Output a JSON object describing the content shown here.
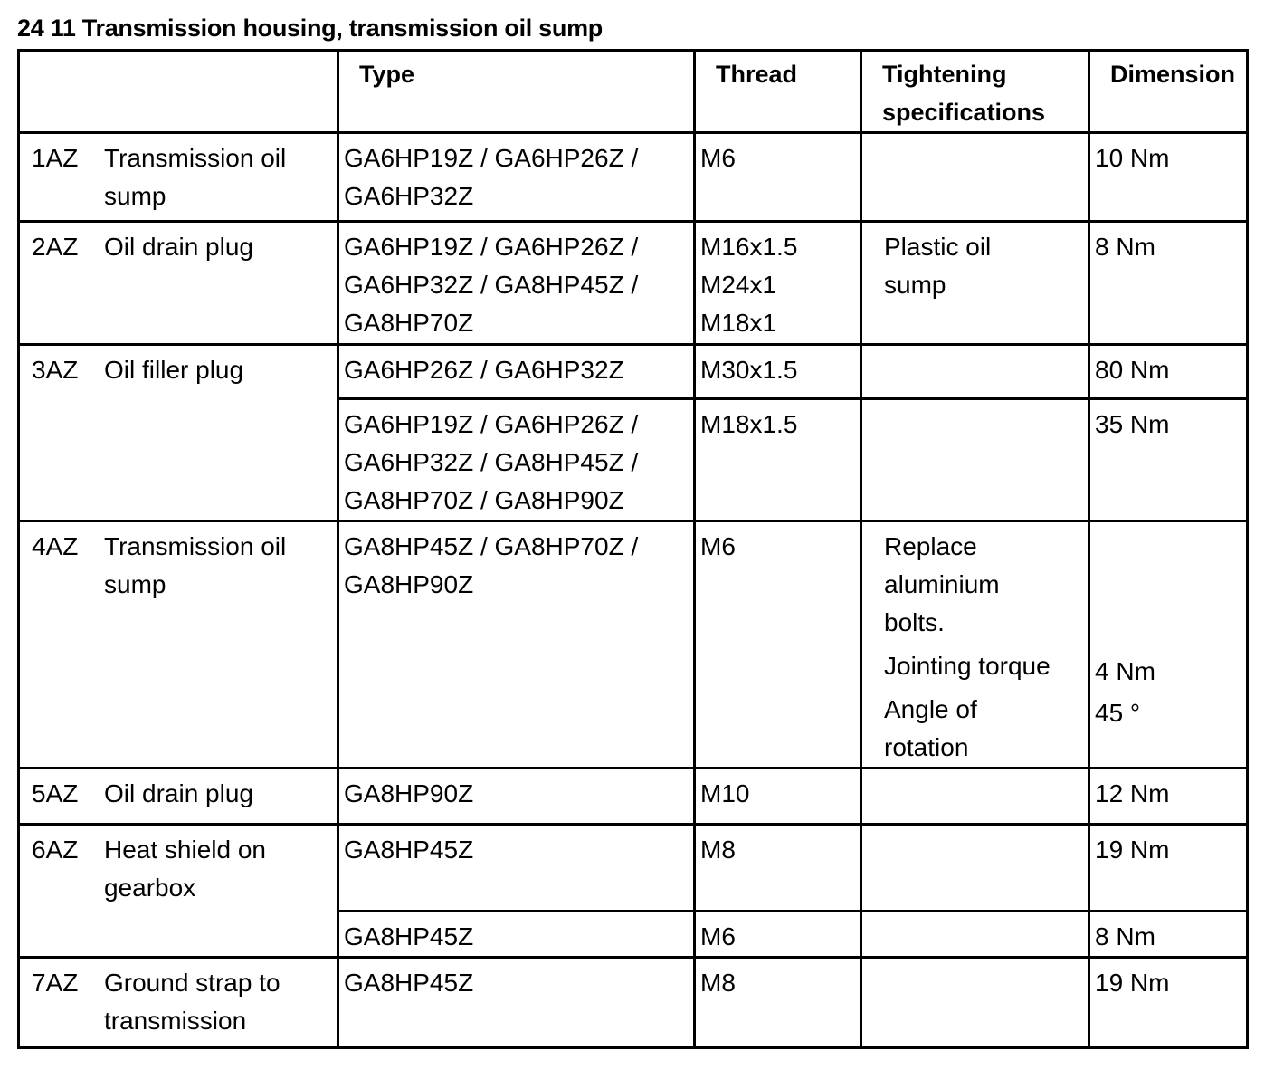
{
  "title": "24 11 Transmission housing, transmission oil sump",
  "headers": {
    "item": "",
    "type": "Type",
    "thread": "Thread",
    "tightening": "Tightening specifications",
    "dimension": "Dimension"
  },
  "rows": [
    {
      "id": "1AZ",
      "description": "Transmission oil sump",
      "type": "GA6HP19Z / GA6HP26Z / GA6HP32Z",
      "thread": "M6",
      "tightening": "",
      "dimension": "10 Nm"
    },
    {
      "id": "2AZ",
      "description": "Oil drain plug",
      "type": "GA6HP19Z / GA6HP26Z / GA6HP32Z / GA8HP45Z / GA8HP70Z",
      "thread": "M16x1.5 M24x1 M18x1",
      "tightening": "Plastic oil sump",
      "dimension": "8 Nm"
    },
    {
      "id": "3AZ",
      "description": "Oil filler plug",
      "type": "GA6HP26Z / GA6HP32Z",
      "thread": "M30x1.5",
      "tightening": "",
      "dimension": "80 Nm"
    },
    {
      "type": "GA6HP19Z / GA6HP26Z / GA6HP32Z / GA8HP45Z / GA8HP70Z / GA8HP90Z",
      "thread": "M18x1.5",
      "tightening": "",
      "dimension": "35 Nm"
    },
    {
      "id": "4AZ",
      "description": "Transmission oil sump",
      "type": "GA8HP45Z / GA8HP70Z / GA8HP90Z",
      "thread": "M6",
      "tightening_1": "Replace aluminium bolts.",
      "tightening_2": "Jointing torque",
      "tightening_3": "Angle of rotation",
      "dimension_1": "4 Nm",
      "dimension_2": "45 °"
    },
    {
      "id": "5AZ",
      "description": "Oil drain plug",
      "type": "GA8HP90Z",
      "thread": "M10",
      "tightening": "",
      "dimension": "12 Nm"
    },
    {
      "id": "6AZ",
      "description": "Heat shield on gearbox",
      "type": "GA8HP45Z",
      "thread": "M8",
      "tightening": "",
      "dimension": "19 Nm"
    },
    {
      "type": "GA8HP45Z",
      "thread": "M6",
      "tightening": "",
      "dimension": "8 Nm"
    },
    {
      "id": "7AZ",
      "description": "Ground strap to transmission",
      "type": "GA8HP45Z",
      "thread": "M8",
      "tightening": "",
      "dimension": "19 Nm"
    }
  ]
}
